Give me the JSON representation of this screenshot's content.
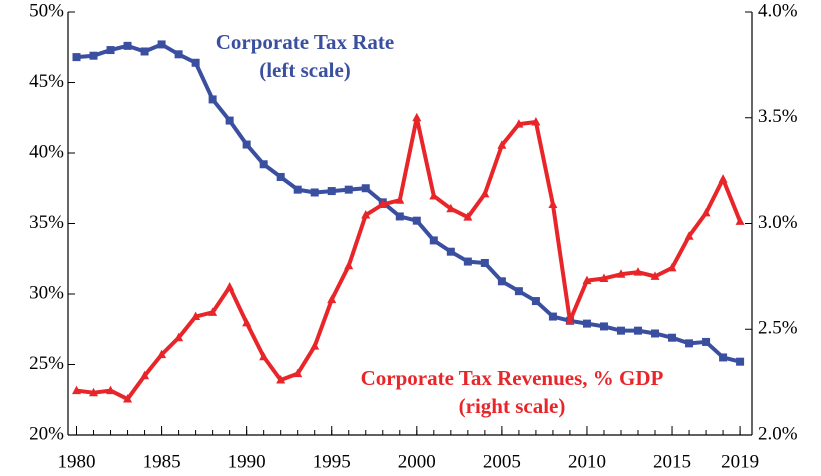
{
  "chart_data": {
    "type": "line",
    "x": [
      1980,
      1981,
      1982,
      1983,
      1984,
      1985,
      1986,
      1987,
      1988,
      1989,
      1990,
      1991,
      1992,
      1993,
      1994,
      1995,
      1996,
      1997,
      1998,
      1999,
      2000,
      2001,
      2002,
      2003,
      2004,
      2005,
      2006,
      2007,
      2008,
      2009,
      2010,
      2011,
      2012,
      2013,
      2014,
      2015,
      2016,
      2017,
      2018,
      2019
    ],
    "xlim": [
      1979.5,
      2019.7
    ],
    "xticks": [
      1980,
      1985,
      1990,
      1995,
      2000,
      2005,
      2010,
      2015,
      2019
    ],
    "ylim": [
      20,
      50
    ],
    "yticks": [
      {
        "value": 20,
        "label": "20%"
      },
      {
        "value": 25,
        "label": "25%"
      },
      {
        "value": 30,
        "label": "30%"
      },
      {
        "value": 35,
        "label": "35%"
      },
      {
        "value": 40,
        "label": "40%"
      },
      {
        "value": 45,
        "label": "45%"
      },
      {
        "value": 50,
        "label": "50%"
      }
    ],
    "y2lim": [
      2.0,
      4.0
    ],
    "y2ticks": [
      {
        "value": 2.0,
        "label": "2.0%"
      },
      {
        "value": 2.5,
        "label": "2.5%"
      },
      {
        "value": 3.0,
        "label": "3.0%"
      },
      {
        "value": 3.5,
        "label": "3.5%"
      },
      {
        "value": 4.0,
        "label": "4.0%"
      }
    ],
    "grid": false,
    "series": [
      {
        "name": "Corporate Tax Rate",
        "color": "#3a4fa0",
        "marker": "square",
        "axis": "y",
        "values": [
          46.8,
          46.9,
          47.3,
          47.6,
          47.2,
          47.7,
          47.0,
          46.4,
          43.8,
          42.3,
          40.6,
          39.2,
          38.3,
          37.4,
          37.2,
          37.3,
          37.4,
          37.5,
          36.5,
          35.5,
          35.2,
          33.8,
          33.0,
          32.3,
          32.2,
          30.9,
          30.2,
          29.5,
          28.4,
          28.1,
          27.9,
          27.7,
          27.4,
          27.4,
          27.2,
          26.9,
          26.5,
          26.6,
          25.5,
          25.2
        ]
      },
      {
        "name": "Corporate Tax Revenues, % GDP",
        "color": "#e8262a",
        "marker": "triangle",
        "axis": "y2",
        "values": [
          2.21,
          2.2,
          2.21,
          2.17,
          2.28,
          2.38,
          2.46,
          2.56,
          2.58,
          2.7,
          2.53,
          2.37,
          2.26,
          2.29,
          2.42,
          2.64,
          2.8,
          3.04,
          3.09,
          3.11,
          3.5,
          3.13,
          3.07,
          3.03,
          3.14,
          3.37,
          3.47,
          3.48,
          3.09,
          2.54,
          2.73,
          2.74,
          2.76,
          2.77,
          2.75,
          2.79,
          2.94,
          3.05,
          3.21,
          3.01
        ]
      }
    ],
    "annotations": [
      {
        "lines": [
          "Corporate Tax Rate",
          "(left scale)"
        ],
        "color": "#3a4fa0"
      },
      {
        "lines": [
          "Corporate Tax Revenues, % GDP",
          "(right scale)"
        ],
        "color": "#e8262a"
      }
    ]
  }
}
